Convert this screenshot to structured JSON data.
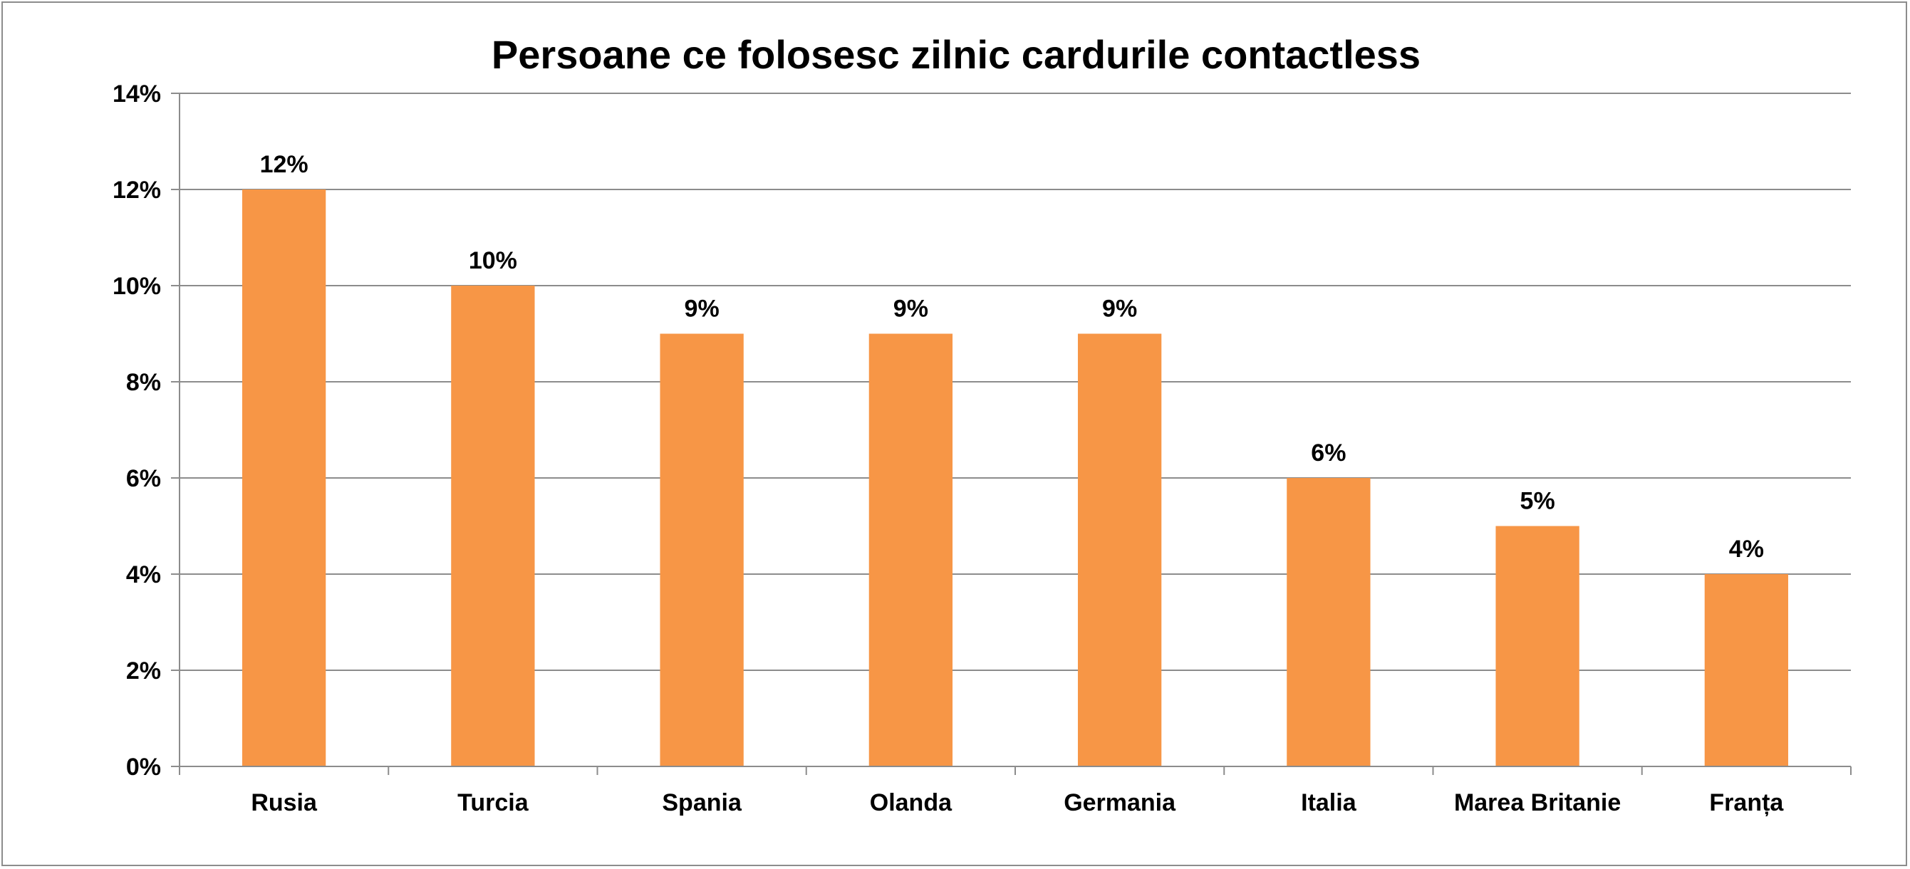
{
  "chart_data": {
    "type": "bar",
    "title": "Persoane ce folosesc zilnic cardurile contactless",
    "xlabel": "",
    "ylabel": "",
    "categories": [
      "Rusia",
      "Turcia",
      "Spania",
      "Olanda",
      "Germania",
      "Italia",
      "Marea Britanie",
      "Franța"
    ],
    "values": [
      12,
      10,
      9,
      9,
      9,
      6,
      5,
      4
    ],
    "value_labels": [
      "12%",
      "10%",
      "9%",
      "9%",
      "9%",
      "6%",
      "5%",
      "4%"
    ],
    "ylim": [
      0,
      14
    ],
    "y_ticks": [
      0,
      2,
      4,
      6,
      8,
      10,
      12,
      14
    ],
    "y_tick_labels": [
      "0%",
      "2%",
      "4%",
      "6%",
      "8%",
      "10%",
      "12%",
      "14%"
    ],
    "grid": true,
    "legend": "none",
    "colors": {
      "bar": "#F79646",
      "grid": "#8C8C8C",
      "axis": "#8C8C8C",
      "frame": "#8C8C8C"
    }
  }
}
